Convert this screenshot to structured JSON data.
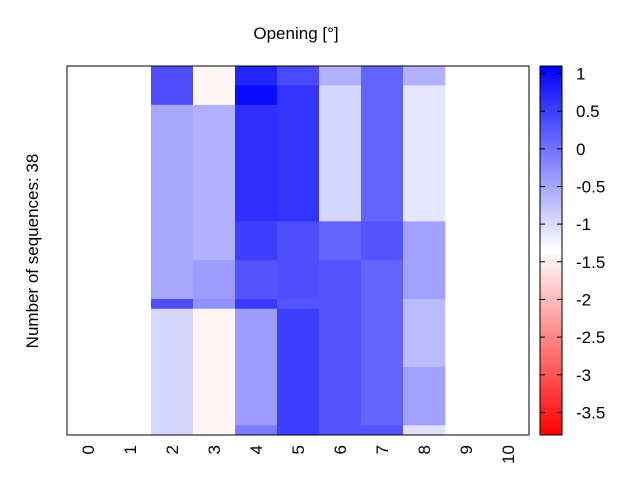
{
  "chart_data": {
    "type": "heatmap",
    "title": "Opening [°]",
    "xlabel": "",
    "ylabel": "Number of sequences: 38",
    "x_categories": [
      "0",
      "1",
      "2",
      "3",
      "4",
      "5",
      "6",
      "7",
      "8",
      "9",
      "10"
    ],
    "n_rows": 38,
    "colorbar": {
      "range": [
        -3.8,
        1.1
      ],
      "ticks": [
        "1",
        "0.5",
        "0",
        "-0.5",
        "-1",
        "-1.5",
        "-2",
        "-2.5",
        "-3",
        "-3.5"
      ],
      "tick_values": [
        1,
        0.5,
        0,
        -0.5,
        -1,
        -1.5,
        -2,
        -2.5,
        -3,
        -3.5
      ],
      "colors": {
        "low": "#ff0000",
        "mid": "#ffffff",
        "high": "#0000ff"
      },
      "mid_value": -1.35
    },
    "cells": [
      {
        "col": 2,
        "row_start": 0,
        "row_end": 4,
        "value": 0.35
      },
      {
        "col": 2,
        "row_start": 4,
        "row_end": 24,
        "value": -0.5
      },
      {
        "col": 2,
        "row_start": 24,
        "row_end": 25,
        "value": 0.35
      },
      {
        "col": 2,
        "row_start": 25,
        "row_end": 38,
        "value": -0.95
      },
      {
        "col": 3,
        "row_start": 0,
        "row_end": 4,
        "value": -1.45
      },
      {
        "col": 3,
        "row_start": 4,
        "row_end": 20,
        "value": -0.6
      },
      {
        "col": 3,
        "row_start": 20,
        "row_end": 24,
        "value": -0.4
      },
      {
        "col": 3,
        "row_start": 24,
        "row_end": 25,
        "value": -0.3
      },
      {
        "col": 3,
        "row_start": 25,
        "row_end": 38,
        "value": -1.45
      },
      {
        "col": 4,
        "row_start": 0,
        "row_end": 2,
        "value": 0.75
      },
      {
        "col": 4,
        "row_start": 2,
        "row_end": 4,
        "value": 1.0
      },
      {
        "col": 4,
        "row_start": 4,
        "row_end": 16,
        "value": 0.65
      },
      {
        "col": 4,
        "row_start": 16,
        "row_end": 20,
        "value": 0.5
      },
      {
        "col": 4,
        "row_start": 20,
        "row_end": 24,
        "value": 0.3
      },
      {
        "col": 4,
        "row_start": 24,
        "row_end": 25,
        "value": 0.55
      },
      {
        "col": 4,
        "row_start": 25,
        "row_end": 37,
        "value": -0.4
      },
      {
        "col": 4,
        "row_start": 37,
        "row_end": 38,
        "value": -0.1
      },
      {
        "col": 5,
        "row_start": 0,
        "row_end": 2,
        "value": 0.4
      },
      {
        "col": 5,
        "row_start": 2,
        "row_end": 4,
        "value": 0.6
      },
      {
        "col": 5,
        "row_start": 4,
        "row_end": 16,
        "value": 0.6
      },
      {
        "col": 5,
        "row_start": 16,
        "row_end": 24,
        "value": 0.35
      },
      {
        "col": 5,
        "row_start": 24,
        "row_end": 25,
        "value": 0.3
      },
      {
        "col": 5,
        "row_start": 25,
        "row_end": 38,
        "value": 0.5
      },
      {
        "col": 6,
        "row_start": 0,
        "row_end": 2,
        "value": -0.6
      },
      {
        "col": 6,
        "row_start": 2,
        "row_end": 16,
        "value": -0.95
      },
      {
        "col": 6,
        "row_start": 16,
        "row_end": 20,
        "value": 0.15
      },
      {
        "col": 6,
        "row_start": 20,
        "row_end": 38,
        "value": 0.3
      },
      {
        "col": 7,
        "row_start": 0,
        "row_end": 16,
        "value": 0.15
      },
      {
        "col": 7,
        "row_start": 16,
        "row_end": 20,
        "value": 0.3
      },
      {
        "col": 7,
        "row_start": 20,
        "row_end": 37,
        "value": 0.15
      },
      {
        "col": 7,
        "row_start": 37,
        "row_end": 38,
        "value": 0.3
      },
      {
        "col": 8,
        "row_start": 0,
        "row_end": 2,
        "value": -0.6
      },
      {
        "col": 8,
        "row_start": 2,
        "row_end": 16,
        "value": -1.1
      },
      {
        "col": 8,
        "row_start": 16,
        "row_end": 24,
        "value": -0.45
      },
      {
        "col": 8,
        "row_start": 24,
        "row_end": 31,
        "value": -0.7
      },
      {
        "col": 8,
        "row_start": 31,
        "row_end": 37,
        "value": -0.45
      },
      {
        "col": 8,
        "row_start": 37,
        "row_end": 38,
        "value": -1.05
      }
    ]
  }
}
